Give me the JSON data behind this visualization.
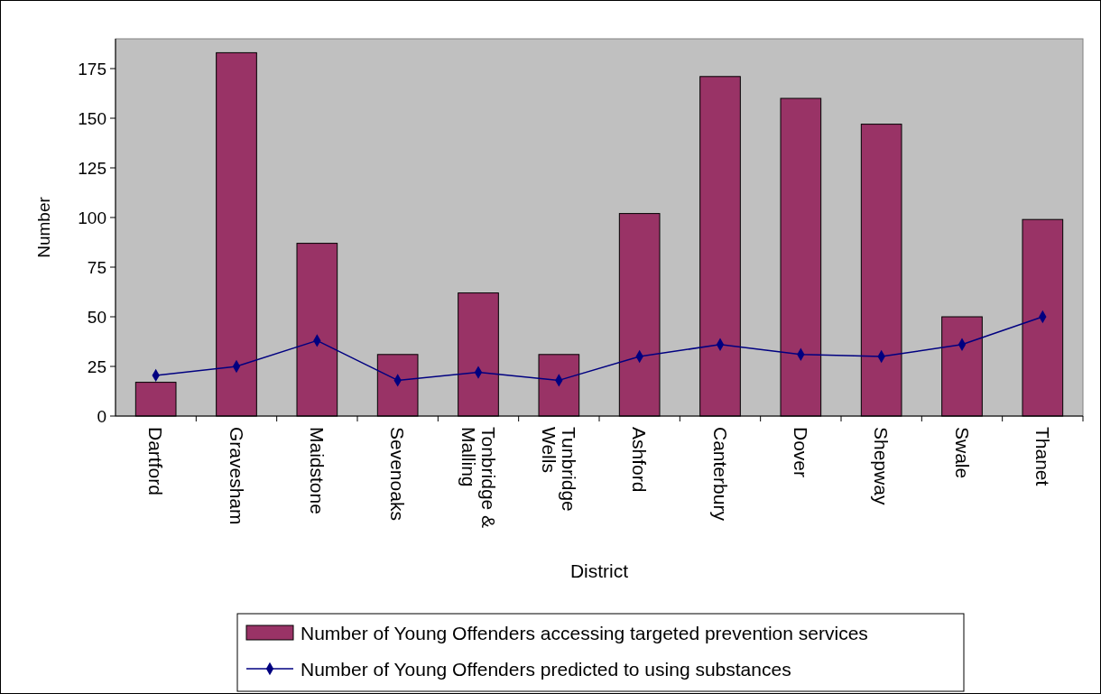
{
  "chart_data": {
    "type": "bar",
    "xlabel": "District",
    "ylabel": "Number",
    "categories": [
      "Dartford",
      "Gravesham",
      "Maidstone",
      "Sevenoaks",
      "Tonbridge & Malling",
      "Tunbridge Wells",
      "Ashford",
      "Canterbury",
      "Dover",
      "Shepway",
      "Swale",
      "Thanet"
    ],
    "series": [
      {
        "name": "Number of Young Offenders accessing targeted prevention services",
        "color": "#993366",
        "values": [
          17,
          183,
          87,
          31,
          62,
          31,
          102,
          171,
          160,
          147,
          50,
          99
        ]
      },
      {
        "name": "Number of Young Offenders predicted to using substances",
        "type": "line",
        "color": "#000080",
        "marker": "diamond",
        "values": [
          20.5,
          25,
          38,
          18,
          22,
          18,
          30,
          36,
          31,
          30,
          36,
          50
        ]
      }
    ],
    "ylim": [
      0,
      190
    ],
    "yticks": [
      0,
      25,
      50,
      75,
      100,
      125,
      150,
      175
    ],
    "grid": false,
    "legend": "bottom"
  }
}
